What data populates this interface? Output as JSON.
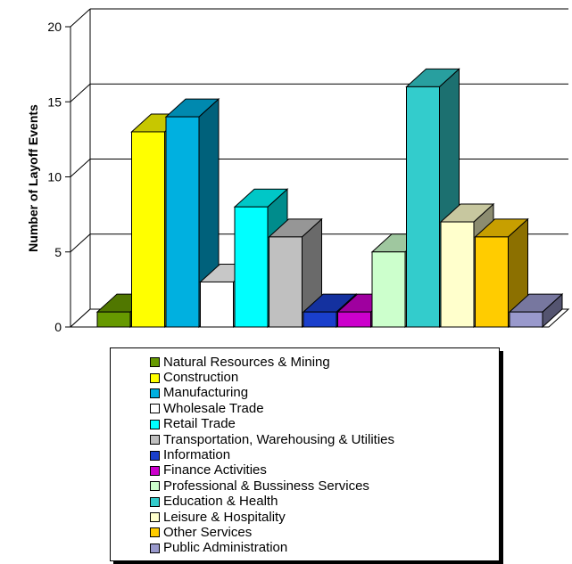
{
  "chart_data": {
    "type": "bar",
    "title": "",
    "ylabel": "Number of Layoff Events",
    "xlabel": "",
    "ylim": [
      0,
      20
    ],
    "yticks": [
      "0",
      "5",
      "10",
      "15",
      "20"
    ],
    "grid": true,
    "legend_position": "bottom",
    "series": [
      {
        "name": "Natural Resources & Mining",
        "value": 1,
        "color": "#669900"
      },
      {
        "name": "Construction",
        "value": 13,
        "color": "#ffff00"
      },
      {
        "name": "Manufacturing",
        "value": 14,
        "color": "#00b0e0"
      },
      {
        "name": "Wholesale Trade",
        "value": 3,
        "color": "#ffffff"
      },
      {
        "name": "Retail Trade",
        "value": 8,
        "color": "#00ffff"
      },
      {
        "name": "Transportation, Warehousing & Utilities",
        "value": 6,
        "color": "#c0c0c0"
      },
      {
        "name": "Information",
        "value": 1,
        "color": "#1a3fcc"
      },
      {
        "name": "Finance Activities",
        "value": 1,
        "color": "#cc00cc"
      },
      {
        "name": "Professional & Bussiness Services",
        "value": 5,
        "color": "#ccffcc"
      },
      {
        "name": "Education & Health",
        "value": 16,
        "color": "#33cccc"
      },
      {
        "name": "Leisure & Hospitality",
        "value": 7,
        "color": "#ffffcc"
      },
      {
        "name": "Other Services",
        "value": 6,
        "color": "#ffcc00"
      },
      {
        "name": "Public Administration",
        "value": 1,
        "color": "#9999cc"
      }
    ]
  }
}
